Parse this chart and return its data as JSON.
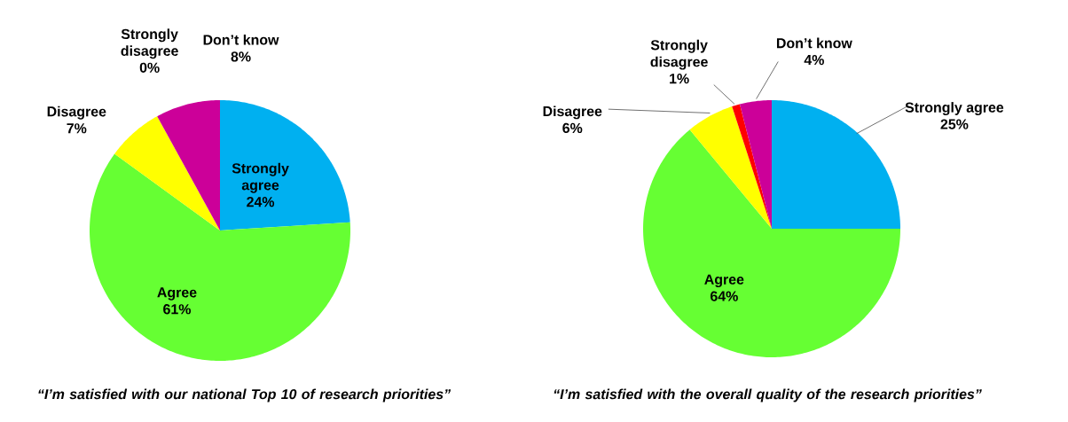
{
  "chart_data": [
    {
      "type": "pie",
      "title": "“I’m satisfied with our national Top 10 of research priorities”",
      "categories": [
        "Strongly agree",
        "Agree",
        "Disagree",
        "Strongly disagree",
        "Don’t know"
      ],
      "values": [
        24,
        61,
        7,
        0,
        8
      ],
      "value_labels": [
        "24%",
        "61%",
        "7%",
        "0%",
        "8%"
      ],
      "colors": [
        "#00b0f0",
        "#66ff33",
        "#ffff00",
        "#ff0000",
        "#cc0099"
      ]
    },
    {
      "type": "pie",
      "title": "“I’m satisfied with the overall quality of the research priorities”",
      "categories": [
        "Strongly agree",
        "Agree",
        "Disagree",
        "Strongly disagree",
        "Don’t know"
      ],
      "values": [
        25,
        64,
        6,
        1,
        4
      ],
      "value_labels": [
        "25%",
        "64%",
        "6%",
        "1%",
        "4%"
      ],
      "colors": [
        "#00b0f0",
        "#66ff33",
        "#ffff00",
        "#ff0000",
        "#cc0099"
      ]
    }
  ]
}
